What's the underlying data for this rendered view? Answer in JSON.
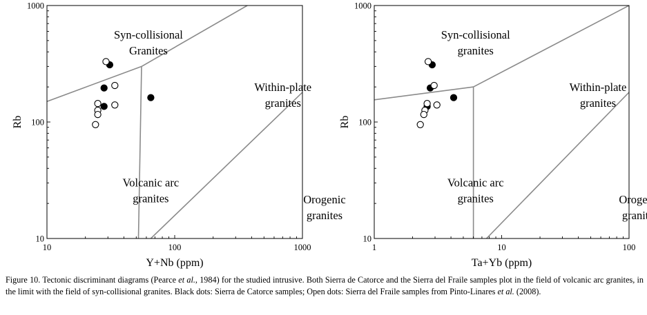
{
  "chart_data": [
    {
      "type": "scatter",
      "title": "",
      "xlabel": "Y+Nb (ppm)",
      "ylabel": "Rb",
      "x_scale": "log",
      "y_scale": "log",
      "xlim": [
        10,
        1000
      ],
      "ylim": [
        10,
        1000
      ],
      "x_ticks": [
        "10",
        "100",
        "1000"
      ],
      "y_ticks": [
        "10",
        "100",
        "1000"
      ],
      "field_labels": [
        {
          "line1": "Syn-collisional",
          "line2": "Granites",
          "x": 23,
          "y": 520
        },
        {
          "line1": "Within-plate",
          "line2": "granites",
          "x": 260,
          "y": 185
        },
        {
          "line1": "Volcanic arc",
          "line2": "granites",
          "x": 24,
          "y": 28
        },
        {
          "line1": "Orogenic",
          "line2": "granites",
          "x": 550,
          "y": 20
        }
      ],
      "boundaries": [
        {
          "name": "syn-collisional / volcanic arc",
          "points": [
            [
              10,
              150
            ],
            [
              55,
              300
            ]
          ]
        },
        {
          "name": "syn-collisional / within-plate",
          "points": [
            [
              55,
              300
            ],
            [
              370,
              1000
            ]
          ]
        },
        {
          "name": "volcanic arc / within-plate",
          "points": [
            [
              52,
              10
            ],
            [
              55,
              300
            ]
          ]
        },
        {
          "name": "orogenic",
          "points": [
            [
              65,
              10
            ],
            [
              1000,
              180
            ]
          ]
        }
      ],
      "series": [
        {
          "name": "Sierra de Catorce samples",
          "marker": "filled",
          "points": [
            [
              31,
              310
            ],
            [
              28,
              196
            ],
            [
              28,
              136
            ],
            [
              65,
              162
            ]
          ]
        },
        {
          "name": "Sierra del Fraile samples",
          "marker": "open",
          "points": [
            [
              29,
              330
            ],
            [
              34,
              206
            ],
            [
              25,
              144
            ],
            [
              34,
              140
            ],
            [
              25,
              126
            ],
            [
              25,
              116
            ],
            [
              24,
              95
            ]
          ]
        }
      ]
    },
    {
      "type": "scatter",
      "title": "",
      "xlabel": "Ta+Yb (ppm)",
      "ylabel": "Rb",
      "x_scale": "log",
      "y_scale": "log",
      "xlim": [
        1,
        100
      ],
      "ylim": [
        10,
        1000
      ],
      "x_ticks": [
        "1",
        "10",
        "100"
      ],
      "y_ticks": [
        "10",
        "100",
        "1000"
      ],
      "field_labels": [
        {
          "line1": "Syn-collisional",
          "line2": "granites",
          "x": 2.3,
          "y": 520
        },
        {
          "line1": "Within-plate",
          "line2": "granites",
          "x": 21,
          "y": 185
        },
        {
          "line1": "Volcanic arc",
          "line2": "granites",
          "x": 2.3,
          "y": 28
        },
        {
          "line1": "Orogenic",
          "line2": "granites",
          "x": 45,
          "y": 20
        }
      ],
      "boundaries": [
        {
          "name": "syn-collisional / volcanic arc",
          "points": [
            [
              1,
              155
            ],
            [
              6,
              200
            ]
          ]
        },
        {
          "name": "syn-collisional / within-plate",
          "points": [
            [
              6,
              200
            ],
            [
              100,
              1000
            ]
          ]
        },
        {
          "name": "volcanic arc / within-plate",
          "points": [
            [
              6,
              10
            ],
            [
              6,
              200
            ]
          ]
        },
        {
          "name": "orogenic",
          "points": [
            [
              7.6,
              10
            ],
            [
              100,
              180
            ]
          ]
        }
      ],
      "series": [
        {
          "name": "Sierra de Catorce samples",
          "marker": "filled",
          "points": [
            [
              2.85,
              310
            ],
            [
              2.75,
              196
            ],
            [
              2.6,
              136
            ],
            [
              4.2,
              162
            ]
          ]
        },
        {
          "name": "Sierra del Fraile samples",
          "marker": "open",
          "points": [
            [
              2.65,
              330
            ],
            [
              2.95,
              206
            ],
            [
              2.6,
              144
            ],
            [
              3.1,
              140
            ],
            [
              2.5,
              126
            ],
            [
              2.45,
              116
            ],
            [
              2.3,
              95
            ]
          ]
        }
      ]
    }
  ],
  "caption": {
    "part1": "Figure 10. Tectonic discriminant diagrams (Pearce ",
    "etal": "et al.",
    "part2": ", 1984) for the studied intrusive. Both Sierra de Catorce and the Sierra del Fraile samples plot in the field of volcanic arc granites, in the limit with the field of syn-collisional granites. Black dots: Sierra de Catorce samples; Open dots: Sierra del Fraile samples from Pinto-Linares ",
    "etal2": "et al.",
    "part3": " (2008)."
  },
  "colors": {
    "frame": "#000000",
    "boundary": "#8a8a8a",
    "marker": "#000000"
  }
}
